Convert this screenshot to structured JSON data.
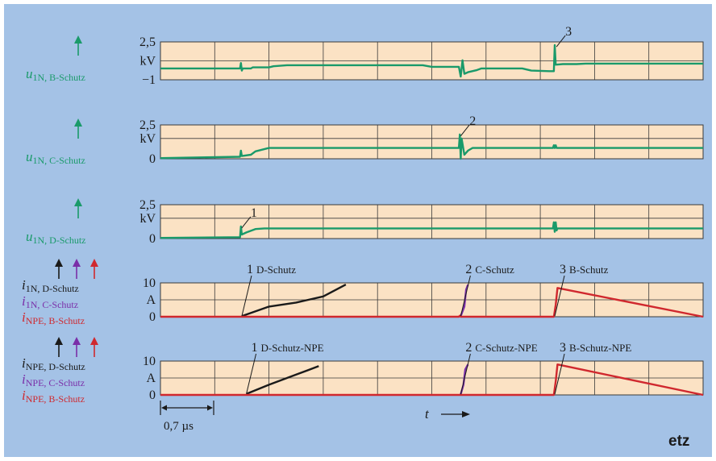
{
  "brand": "etz",
  "colors": {
    "background": "#a4c2e6",
    "panel": "#fbe2c4",
    "grid": "#3a3a3a",
    "green": "#1a9a6a",
    "black": "#1a1a1a",
    "purple": "#7a2ea8",
    "red": "#d0282e"
  },
  "time_scale_label": "0,7 µs",
  "time_axis_label": "t",
  "chart_data": [
    {
      "type": "line",
      "id": "u1n_b",
      "ylim": [
        -1,
        2.5
      ],
      "y_ticks": [
        {
          "value": 2.5,
          "label": "2,5"
        },
        {
          "value": 0.75,
          "label": "kV"
        },
        {
          "value": -1,
          "label": "−1"
        }
      ],
      "legend": [
        {
          "sym": "u",
          "sub": "1N, B-Schutz",
          "color": "#1a9a6a"
        }
      ],
      "series": [
        {
          "color": "#1a9a6a",
          "x": [
            0,
            0.88,
            0.89,
            0.9,
            0.91,
            1.0,
            1.02,
            1.2,
            1.25,
            1.4,
            2.9,
            3.0,
            3.1,
            3.3,
            3.32,
            3.34,
            3.36,
            3.4,
            3.5,
            3.55,
            4.0,
            4.1,
            4.3,
            4.35,
            4.36,
            4.37,
            4.38,
            4.45,
            4.6,
            4.7,
            6.0
          ],
          "y": [
            0.05,
            0.05,
            0.55,
            -0.15,
            0.05,
            0.05,
            0.15,
            0.15,
            0.25,
            0.35,
            0.35,
            0.2,
            0.2,
            0.2,
            -0.7,
            0.8,
            -0.45,
            -0.3,
            -0.1,
            0.05,
            0.05,
            -0.15,
            -0.2,
            -0.2,
            2.2,
            0.4,
            0.4,
            0.45,
            0.45,
            0.5,
            0.5
          ]
        }
      ],
      "annotations": [
        {
          "label": "3",
          "x": 4.37,
          "y": 2.2
        }
      ]
    },
    {
      "type": "line",
      "id": "u1n_c",
      "ylim": [
        0,
        2.5
      ],
      "y_ticks": [
        {
          "value": 2.5,
          "label": "2,5"
        },
        {
          "value": 1.5,
          "label": "kV"
        },
        {
          "value": 0,
          "label": "0"
        }
      ],
      "legend": [
        {
          "sym": "u",
          "sub": "1N, C-Schutz",
          "color": "#1a9a6a"
        }
      ],
      "series": [
        {
          "color": "#1a9a6a",
          "x": [
            0,
            0.88,
            0.89,
            0.9,
            1.0,
            1.05,
            1.2,
            3.3,
            3.31,
            3.32,
            3.33,
            3.36,
            3.4,
            3.45,
            4.34,
            4.35,
            4.36,
            4.37,
            4.38,
            4.39,
            6.0
          ],
          "y": [
            0.05,
            0.15,
            0.6,
            0.2,
            0.3,
            0.55,
            0.8,
            0.8,
            1.8,
            0.0,
            1.5,
            0.3,
            0.6,
            0.8,
            0.8,
            1.0,
            0.8,
            1.0,
            0.8,
            0.8,
            0.8
          ]
        }
      ],
      "annotations": [
        {
          "label": "2",
          "x": 3.31,
          "y": 1.8
        }
      ]
    },
    {
      "type": "line",
      "id": "u1n_d",
      "ylim": [
        0,
        2.5
      ],
      "y_ticks": [
        {
          "value": 2.5,
          "label": "2,5"
        },
        {
          "value": 1.5,
          "label": "kV"
        },
        {
          "value": 0,
          "label": "0"
        }
      ],
      "legend": [
        {
          "sym": "u",
          "sub": "1N, D-Schutz",
          "color": "#1a9a6a"
        }
      ],
      "series": [
        {
          "color": "#1a9a6a",
          "x": [
            0,
            0.88,
            0.89,
            0.9,
            0.95,
            1.05,
            1.15,
            4.34,
            4.35,
            4.36,
            4.37,
            4.38,
            4.39,
            4.4,
            6.0
          ],
          "y": [
            0.05,
            0.1,
            0.9,
            0.3,
            0.45,
            0.7,
            0.75,
            0.75,
            1.2,
            0.5,
            1.2,
            0.6,
            0.75,
            0.75,
            0.75
          ]
        }
      ],
      "annotations": [
        {
          "label": "1",
          "x": 0.89,
          "y": 0.9
        }
      ]
    },
    {
      "type": "line",
      "id": "i1n",
      "ylim": [
        0,
        10
      ],
      "y_ticks": [
        {
          "value": 10,
          "label": "10"
        },
        {
          "value": 5,
          "label": "A"
        },
        {
          "value": 0,
          "label": "0"
        }
      ],
      "legend": [
        {
          "sym": "i",
          "sub": "1N, D-Schutz",
          "color": "#1a1a1a"
        },
        {
          "sym": "i",
          "sub": "1N, C-Schutz",
          "color": "#7a2ea8"
        },
        {
          "sym": "i",
          "sub": "NPE, B-Schutz",
          "color": "#d0282e"
        }
      ],
      "series": [
        {
          "color": "#1a1a1a",
          "x": [
            0.9,
            1.2,
            1.5,
            1.8,
            2.05
          ],
          "y": [
            0.2,
            3.0,
            4.2,
            6.0,
            9.5
          ]
        },
        {
          "color": "#7a2ea8",
          "x": [
            3.32,
            3.36,
            3.38,
            3.4
          ],
          "y": [
            0.2,
            3.0,
            8.0,
            9.5
          ]
        },
        {
          "color": "#d0282e",
          "x": [
            0,
            3.3,
            3.31,
            3.32,
            4.35,
            4.37,
            4.39,
            6.0
          ],
          "y": [
            0,
            0,
            0.3,
            0,
            0,
            3.5,
            8.5,
            0
          ]
        }
      ],
      "annotations": [
        {
          "label": "1",
          "name": "D-Schutz",
          "x": 0.9,
          "y": 0.2
        },
        {
          "label": "2",
          "name": "C-Schutz",
          "x": 3.32,
          "y": 0.2
        },
        {
          "label": "3",
          "name": "B-Schutz",
          "x": 4.36,
          "y": 0.2
        }
      ]
    },
    {
      "type": "line",
      "id": "inpe",
      "ylim": [
        0,
        10
      ],
      "y_ticks": [
        {
          "value": 10,
          "label": "10"
        },
        {
          "value": 5,
          "label": "A"
        },
        {
          "value": 0,
          "label": "0"
        }
      ],
      "legend": [
        {
          "sym": "i",
          "sub": "NPE, D-Schutz",
          "color": "#1a1a1a"
        },
        {
          "sym": "i",
          "sub": "NPE, C-Schutz",
          "color": "#7a2ea8"
        },
        {
          "sym": "i",
          "sub": "NPE, B-Schutz",
          "color": "#d0282e"
        }
      ],
      "series": [
        {
          "color": "#1a1a1a",
          "x": [
            0.95,
            1.2,
            1.5,
            1.75
          ],
          "y": [
            0.3,
            3.0,
            6.0,
            8.5
          ]
        },
        {
          "color": "#7a2ea8",
          "x": [
            3.32,
            3.35,
            3.37,
            3.4
          ],
          "y": [
            0.2,
            3.0,
            7.5,
            9.0
          ]
        },
        {
          "color": "#d0282e",
          "x": [
            0,
            4.35,
            4.37,
            4.39,
            6.0
          ],
          "y": [
            0,
            0,
            4.0,
            9.0,
            0
          ]
        }
      ],
      "annotations": [
        {
          "label": "1",
          "name": "D-Schutz-NPE",
          "x": 0.95,
          "y": 0.3
        },
        {
          "label": "2",
          "name": "C-Schutz-NPE",
          "x": 3.32,
          "y": 0.2
        },
        {
          "label": "3",
          "name": "B-Schutz-NPE",
          "x": 4.36,
          "y": 0.2
        }
      ]
    }
  ]
}
